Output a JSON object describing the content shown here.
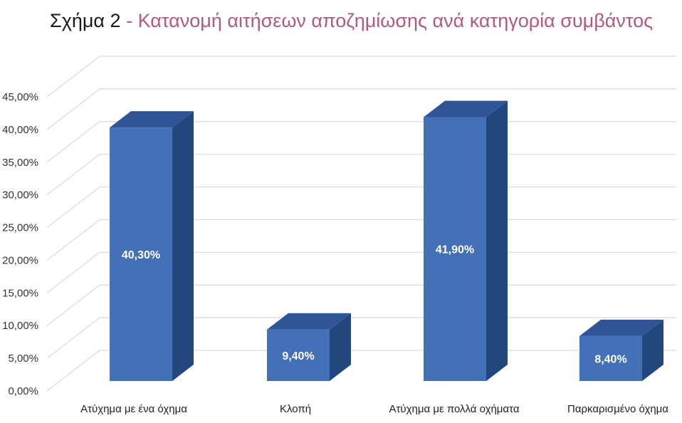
{
  "title": {
    "prefix": "Σχήμα 2",
    "separator": " - ",
    "text": "Κατανομή αιτήσεων αποζημίωσης ανά κατηγορία συμβάντος"
  },
  "colors": {
    "title_prefix": "#1a1a1a",
    "title_accent": "#b05a82",
    "bar_front": "#4470b8",
    "bar_side": "#24467f",
    "bar_top": "#2f5597",
    "grid": "#d9d9d9"
  },
  "chart_data": {
    "type": "bar",
    "style": "3d-column",
    "title": "Κατανομή αιτήσεων αποζημίωσης ανά κατηγορία συμβάντος",
    "categories": [
      "Ατύχημα με ένα όχημα",
      "Κλοπή",
      "Ατύχημα με πολλά οχήματα",
      "Παρκαρισμένο όχημα"
    ],
    "values": [
      40.3,
      9.4,
      41.9,
      8.4
    ],
    "data_labels": [
      "40,30%",
      "9,40%",
      "41,90%",
      "8,40%"
    ],
    "yticks": [
      "0,00%",
      "5,00%",
      "10,00%",
      "15,00%",
      "20,00%",
      "25,00%",
      "30,00%",
      "35,00%",
      "40,00%",
      "45,00%"
    ],
    "ylim": [
      0,
      45
    ],
    "ytick_step": 5,
    "grid": true,
    "legend": "none",
    "xlabel": "",
    "ylabel": ""
  }
}
